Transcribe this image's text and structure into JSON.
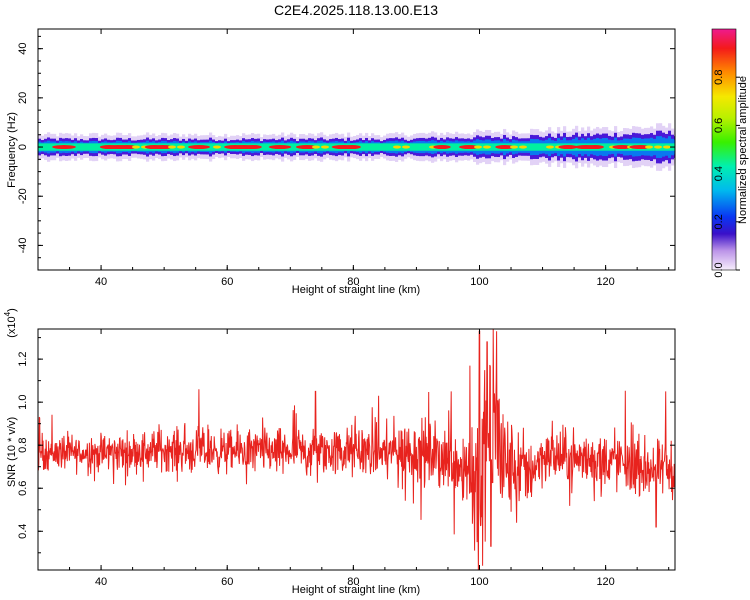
{
  "title": "C2E4.2025.118.13.00.E13",
  "colorbar": {
    "label": "Normalized spectral amplitude",
    "ticks": [
      "0.0",
      "0.2",
      "0.4",
      "0.6",
      "0.8"
    ],
    "range": [
      0,
      1
    ]
  },
  "chart_data": [
    {
      "type": "heatmap",
      "xlabel": "Height of straight line (km)",
      "ylabel": "Frequency (Hz)",
      "xlim": [
        30,
        131
      ],
      "ylim": [
        -50,
        48
      ],
      "xticks": [
        "40",
        "60",
        "80",
        "100",
        "120"
      ],
      "yticks": [
        "40",
        "20",
        "0",
        "-20",
        "-40"
      ],
      "band": {
        "center_hz": 0,
        "core_halfwidth_hz": 1.5,
        "outer_halfwidth_hz": 4,
        "peak_amplitude": 1.0
      }
    },
    {
      "type": "line",
      "xlabel": "Height of straight line (km)",
      "ylabel": "SNR (10 * v/v)",
      "yunit": "(x10",
      "yexp": "4",
      "xlim": [
        30,
        131
      ],
      "ylim": [
        0.22,
        1.34
      ],
      "xticks": [
        "40",
        "60",
        "80",
        "100",
        "120"
      ],
      "yticks": [
        "1.2",
        "1.0",
        "0.8",
        "0.6",
        "0.4"
      ],
      "series_color": "#e8231e",
      "trend": {
        "x": [
          30,
          40,
          50,
          60,
          70,
          80,
          90,
          96,
          99,
          100,
          101,
          102.5,
          104,
          108,
          110,
          120,
          130
        ],
        "y": [
          0.77,
          0.76,
          0.78,
          0.77,
          0.77,
          0.77,
          0.77,
          0.73,
          0.68,
          0.62,
          0.8,
          0.9,
          0.7,
          0.68,
          0.75,
          0.73,
          0.68
        ]
      },
      "spread": [
        [
          30,
          0.06
        ],
        [
          40,
          0.06
        ],
        [
          55,
          0.07
        ],
        [
          70,
          0.07
        ],
        [
          85,
          0.09
        ],
        [
          97,
          0.12
        ],
        [
          100,
          0.28
        ],
        [
          102.5,
          0.3
        ],
        [
          105,
          0.15
        ],
        [
          110,
          0.09
        ],
        [
          120,
          0.09
        ],
        [
          130,
          0.09
        ]
      ],
      "peaks": [
        {
          "x": 55.5,
          "y": 1.06
        },
        {
          "x": 74,
          "y": 1.05
        },
        {
          "x": 84,
          "y": 1.03
        },
        {
          "x": 95.5,
          "y": 1.05
        },
        {
          "x": 98.5,
          "y": 1.17
        },
        {
          "x": 100,
          "y": 1.33
        },
        {
          "x": 101.2,
          "y": 1.28
        },
        {
          "x": 102.7,
          "y": 1.33
        },
        {
          "x": 100.5,
          "y": 0.24
        },
        {
          "x": 99.2,
          "y": 0.31
        },
        {
          "x": 101.8,
          "y": 0.33
        },
        {
          "x": 129.5,
          "y": 1.05
        },
        {
          "x": 128,
          "y": 0.42
        }
      ]
    }
  ]
}
